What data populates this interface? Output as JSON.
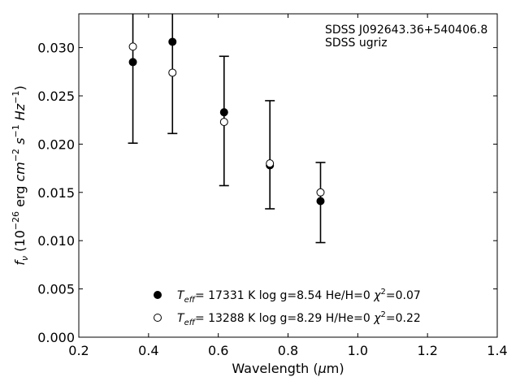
{
  "chart_data": {
    "type": "scatter",
    "xlabel": "Wavelength (μm)",
    "ylabel": "f_ν (10^−26 erg cm^−2 s^−1 Hz^−1)",
    "xlim": [
      0.2,
      1.4
    ],
    "ylim": [
      0.0,
      0.0335
    ],
    "x_ticks": [
      0.2,
      0.4,
      0.6,
      0.8,
      1.0,
      1.2,
      1.4
    ],
    "x_tick_labels": [
      "0.2",
      "0.4",
      "0.6",
      "0.8",
      "1.0",
      "1.2",
      "1.4"
    ],
    "y_ticks": [
      0.0,
      0.005,
      0.01,
      0.015,
      0.02,
      0.025,
      0.03
    ],
    "y_tick_labels": [
      "0.000",
      "0.005",
      "0.010",
      "0.015",
      "0.020",
      "0.025",
      "0.030"
    ],
    "annotations": [
      "SDSS J092643.36+540406.8",
      "SDSS ugriz"
    ],
    "legend_position": "bottom-center",
    "grid": false,
    "observed": {
      "x": [
        0.3551,
        0.4686,
        0.6166,
        0.748,
        0.8932
      ],
      "y_upper": [
        0.0335,
        0.0335,
        0.0291,
        0.0245,
        0.0181
      ],
      "y_lower": [
        0.0201,
        0.0211,
        0.0157,
        0.0133,
        0.0098
      ]
    },
    "series": [
      {
        "legend_label": "T_eff= 17331 K  log g=8.54  He/H=0  χ²=0.07",
        "marker": "filled-circle",
        "x": [
          0.3551,
          0.4686,
          0.6166,
          0.748,
          0.8932
        ],
        "y": [
          0.0285,
          0.0306,
          0.0233,
          0.0178,
          0.0141
        ]
      },
      {
        "legend_label": "T_eff= 13288 K  log g=8.29  H/He=0  χ²=0.22",
        "marker": "open-circle",
        "x": [
          0.3551,
          0.4686,
          0.6166,
          0.748,
          0.8932
        ],
        "y": [
          0.0301,
          0.0274,
          0.0223,
          0.018,
          0.015
        ]
      }
    ]
  }
}
